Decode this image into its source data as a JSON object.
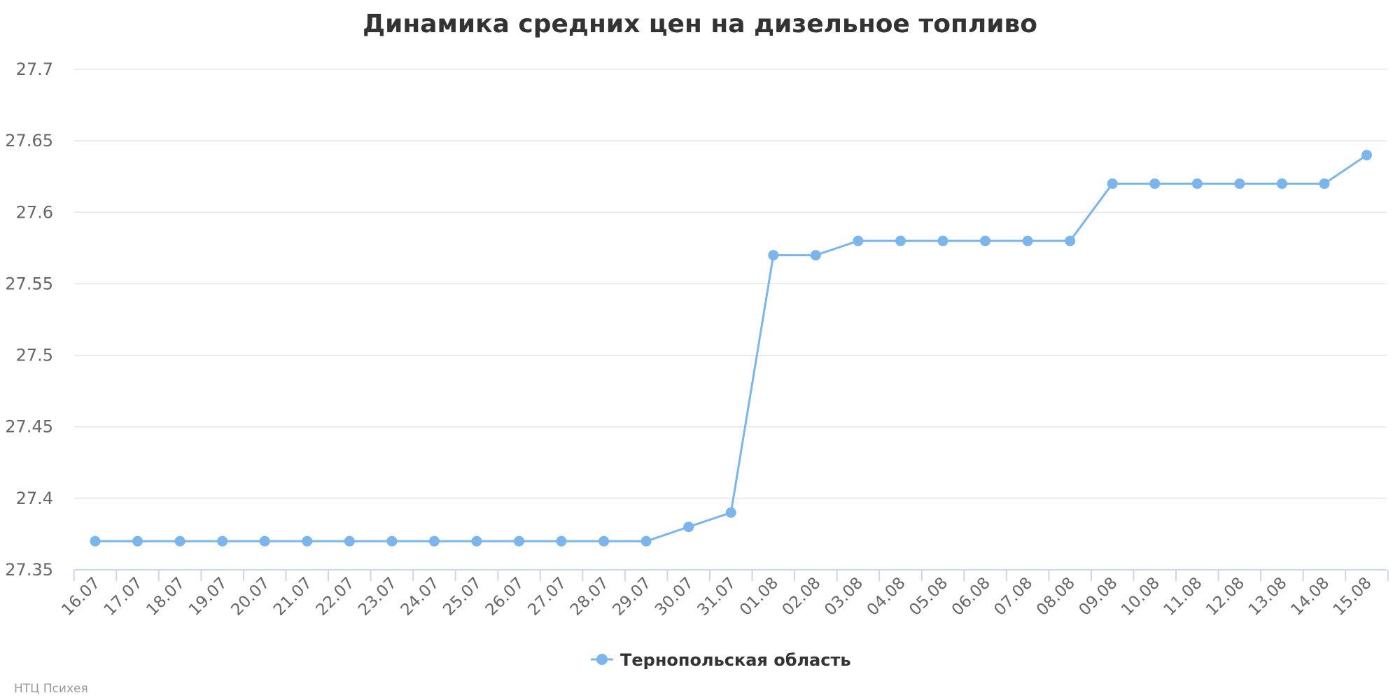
{
  "chart_data": {
    "type": "line",
    "title": "Динамика средних цен на дизельное топливо",
    "xlabel": "",
    "ylabel": "",
    "categories": [
      "16.07",
      "17.07",
      "18.07",
      "19.07",
      "20.07",
      "21.07",
      "22.07",
      "23.07",
      "24.07",
      "25.07",
      "26.07",
      "27.07",
      "28.07",
      "29.07",
      "30.07",
      "31.07",
      "01.08",
      "02.08",
      "03.08",
      "04.08",
      "05.08",
      "06.08",
      "07.08",
      "08.08",
      "09.08",
      "10.08",
      "11.08",
      "12.08",
      "13.08",
      "14.08",
      "15.08"
    ],
    "series": [
      {
        "name": "Тернопольская область",
        "color": "#7cb5ec",
        "values": [
          27.37,
          27.37,
          27.37,
          27.37,
          27.37,
          27.37,
          27.37,
          27.37,
          27.37,
          27.37,
          27.37,
          27.37,
          27.37,
          27.37,
          27.38,
          27.39,
          27.57,
          27.57,
          27.58,
          27.58,
          27.58,
          27.58,
          27.58,
          27.58,
          27.62,
          27.62,
          27.62,
          27.62,
          27.62,
          27.62,
          27.64
        ]
      }
    ],
    "ylim": [
      27.35,
      27.7
    ],
    "yticks": [
      "27.35",
      "27.4",
      "27.45",
      "27.5",
      "27.55",
      "27.6",
      "27.65",
      "27.7"
    ],
    "grid": true,
    "legend_position": "bottom-center"
  },
  "credit": "НТЦ Психея"
}
